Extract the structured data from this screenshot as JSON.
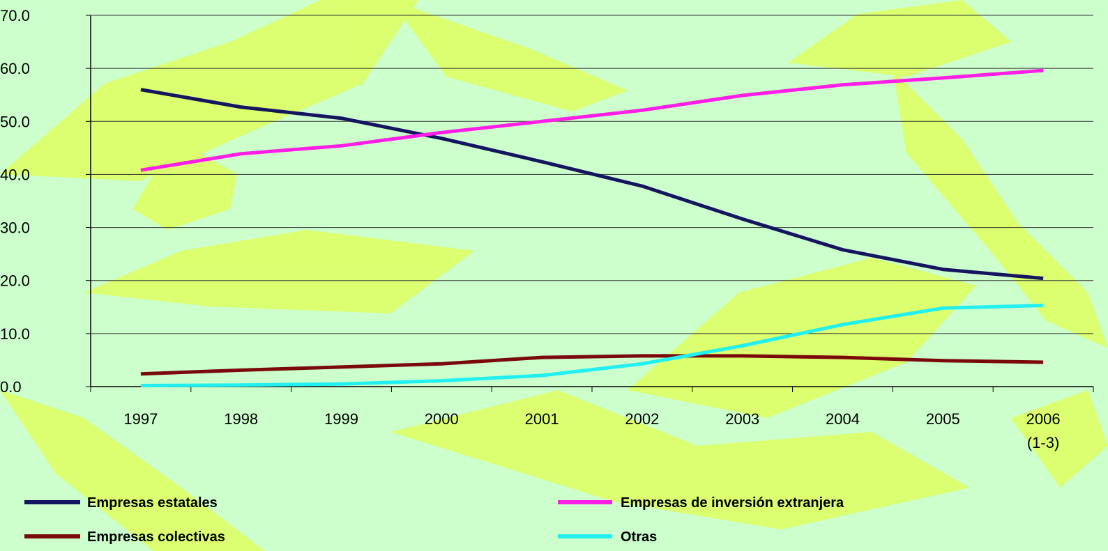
{
  "chart_data": {
    "type": "line",
    "categories": [
      "1997",
      "1998",
      "1999",
      "2000",
      "2001",
      "2002",
      "2003",
      "2004",
      "2005",
      "2006\n(1-3)"
    ],
    "series": [
      {
        "name": "Empresas estatales",
        "color": "#14145f",
        "values": [
          56.0,
          52.7,
          50.6,
          46.8,
          42.4,
          37.8,
          31.6,
          25.8,
          22.1,
          20.4
        ]
      },
      {
        "name": "Empresas de inversión extranjera",
        "color": "#ff1ee6",
        "values": [
          40.8,
          43.9,
          45.4,
          47.9,
          50.0,
          52.1,
          54.9,
          56.9,
          58.2,
          59.6
        ]
      },
      {
        "name": "Empresas colectivas",
        "color": "#7a0a0a",
        "values": [
          2.4,
          3.1,
          3.7,
          4.3,
          5.5,
          5.8,
          5.8,
          5.5,
          4.9,
          4.6
        ]
      },
      {
        "name": "Otras",
        "color": "#22f0f0",
        "values": [
          0.2,
          0.3,
          0.5,
          1.1,
          2.1,
          4.3,
          7.7,
          11.7,
          14.8,
          15.3
        ]
      }
    ],
    "ylim": [
      0,
      70
    ],
    "yticks": [
      {
        "value": 0,
        "label": "0.0"
      },
      {
        "value": 10,
        "label": "10.0"
      },
      {
        "value": 20,
        "label": "20.0"
      },
      {
        "value": 30,
        "label": "30.0"
      },
      {
        "value": 40,
        "label": "40.0"
      },
      {
        "value": 50,
        "label": "50.0"
      },
      {
        "value": 60,
        "label": "60.0"
      },
      {
        "value": 70,
        "label": "70.0"
      }
    ],
    "grid": true
  }
}
